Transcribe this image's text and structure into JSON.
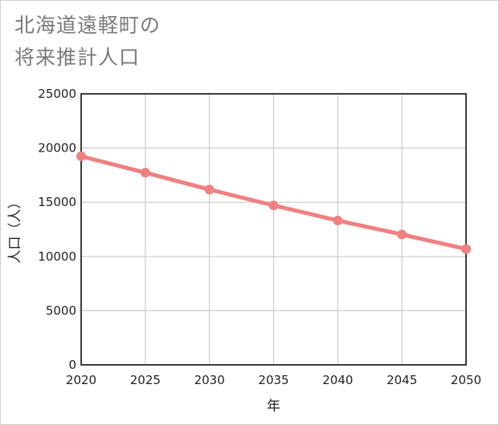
{
  "chart_data": {
    "type": "line",
    "title": "北海道遠軽町の将来推計人口",
    "title_lines": [
      "北海道遠軽町の",
      "将来推計人口"
    ],
    "xlabel": "年",
    "ylabel": "人口（人）",
    "x": [
      2020,
      2025,
      2030,
      2035,
      2040,
      2045,
      2050
    ],
    "x_tick_labels": [
      "2020",
      "2025",
      "2030",
      "2035",
      "2040",
      "2045",
      "2050"
    ],
    "y_tick_labels": [
      "0",
      "5000",
      "10000",
      "15000",
      "20000",
      "25000"
    ],
    "y_ticks": [
      0,
      5000,
      10000,
      15000,
      20000,
      25000
    ],
    "xlim": [
      2020,
      2050
    ],
    "ylim": [
      0,
      25000
    ],
    "grid": true,
    "legend": "none",
    "series": [
      {
        "name": "人口",
        "values": [
          19241,
          17730,
          16170,
          14710,
          13310,
          12030,
          10690
        ],
        "color": "#f08080"
      }
    ]
  }
}
